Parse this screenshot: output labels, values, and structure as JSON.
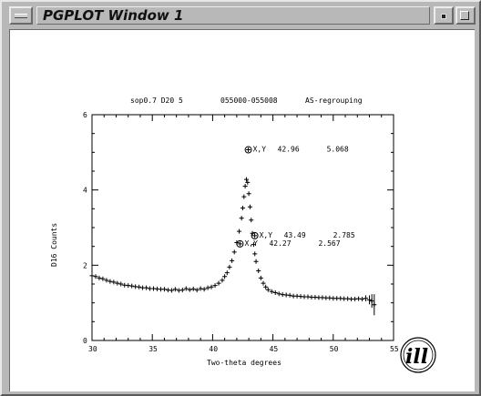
{
  "window": {
    "title": "PGPLOT Window 1"
  },
  "plot": {
    "header": {
      "sample": "sop0.7 D20 5",
      "runs": "055000-055008",
      "note": "AS-regrouping"
    },
    "xlabel": "Two-theta degrees",
    "ylabel": "D16 Counts",
    "logo": "ill"
  },
  "chart_data": {
    "type": "scatter",
    "marker": "plus",
    "xlim": [
      30,
      55
    ],
    "ylim": [
      0,
      6
    ],
    "xticks": [
      30,
      35,
      40,
      45,
      50,
      55
    ],
    "yticks": [
      0,
      2,
      4,
      6
    ],
    "annotations": [
      {
        "label": "X,Y",
        "x_value": "42.96",
        "y_value": "5.068",
        "x": 42.96,
        "y": 5.068
      },
      {
        "label": "X,Y",
        "x_value": "43.49",
        "y_value": "2.785",
        "x": 43.49,
        "y": 2.785
      },
      {
        "label": "X,Y",
        "x_value": "42.27",
        "y_value": "2.567",
        "x": 42.27,
        "y": 2.567
      }
    ],
    "series": [
      {
        "x": [
          30.0,
          30.3,
          30.6,
          30.9,
          31.2,
          31.5,
          31.8,
          32.1,
          32.4,
          32.7,
          33.0,
          33.3,
          33.6,
          33.9,
          34.2,
          34.5,
          34.8,
          35.1,
          35.4,
          35.7,
          36.0,
          36.3,
          36.6,
          36.9,
          37.2,
          37.5,
          37.8,
          38.1,
          38.4,
          38.7,
          39.0,
          39.3,
          39.6,
          39.9,
          40.2,
          40.5,
          40.8,
          41.0,
          41.2,
          41.4,
          41.6,
          41.8,
          42.0,
          42.2,
          42.4,
          42.5,
          42.6,
          42.7,
          42.8,
          42.9,
          43.0,
          43.1,
          43.2,
          43.3,
          43.4,
          43.5,
          43.6,
          43.8,
          44.0,
          44.2,
          44.4,
          44.6,
          44.9,
          45.2,
          45.5,
          45.8,
          46.1,
          46.4,
          46.7,
          47.0,
          47.3,
          47.6,
          47.9,
          48.2,
          48.5,
          48.8,
          49.1,
          49.4,
          49.7,
          50.0,
          50.3,
          50.6,
          50.9,
          51.2,
          51.5,
          51.8,
          52.1,
          52.4,
          52.7,
          53.0,
          53.2,
          53.4
        ],
        "y": [
          1.72,
          1.7,
          1.66,
          1.64,
          1.6,
          1.57,
          1.55,
          1.52,
          1.5,
          1.47,
          1.46,
          1.45,
          1.43,
          1.42,
          1.4,
          1.4,
          1.38,
          1.38,
          1.37,
          1.36,
          1.36,
          1.34,
          1.33,
          1.36,
          1.33,
          1.34,
          1.38,
          1.35,
          1.37,
          1.34,
          1.38,
          1.36,
          1.4,
          1.42,
          1.46,
          1.52,
          1.6,
          1.7,
          1.8,
          1.95,
          2.12,
          2.35,
          2.6,
          2.9,
          3.25,
          3.52,
          3.82,
          4.1,
          4.28,
          4.2,
          3.9,
          3.55,
          3.2,
          2.85,
          2.55,
          2.3,
          2.1,
          1.85,
          1.66,
          1.52,
          1.42,
          1.35,
          1.3,
          1.27,
          1.24,
          1.22,
          1.21,
          1.2,
          1.18,
          1.18,
          1.17,
          1.16,
          1.16,
          1.15,
          1.15,
          1.14,
          1.14,
          1.13,
          1.13,
          1.12,
          1.12,
          1.12,
          1.11,
          1.11,
          1.1,
          1.1,
          1.11,
          1.1,
          1.12,
          1.08,
          1.05,
          0.95
        ]
      }
    ]
  }
}
